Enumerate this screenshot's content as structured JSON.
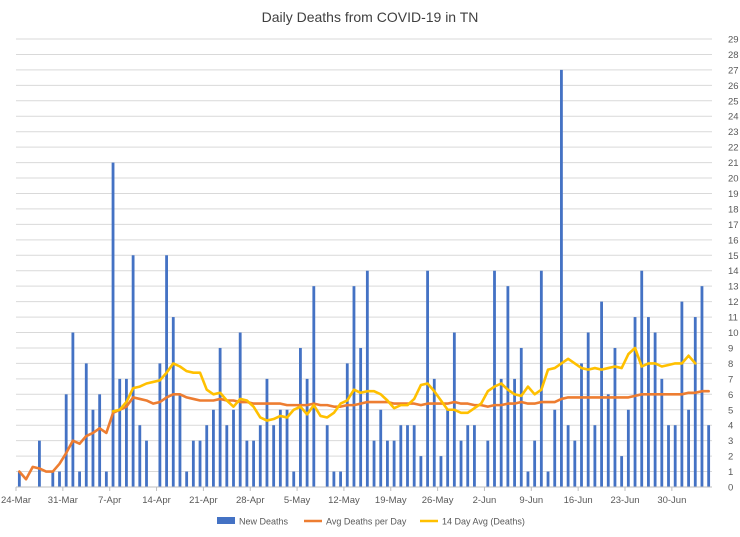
{
  "chart_data": {
    "type": "bar",
    "title": "Daily Deaths from COVID-19 in TN",
    "xlabel": "",
    "ylabel": "",
    "ylim": [
      0,
      29
    ],
    "yticks": [
      0,
      1,
      2,
      3,
      4,
      5,
      6,
      7,
      8,
      9,
      10,
      11,
      12,
      13,
      14,
      15,
      16,
      17,
      18,
      19,
      20,
      21,
      22,
      23,
      24,
      25,
      26,
      27,
      28,
      29
    ],
    "x_tick_labels": [
      "24-Mar",
      "31-Mar",
      "7-Apr",
      "14-Apr",
      "21-Apr",
      "28-Apr",
      "5-May",
      "12-May",
      "19-May",
      "26-May",
      "2-Jun",
      "9-Jun",
      "16-Jun",
      "23-Jun",
      "30-Jun"
    ],
    "grid": true,
    "legend_position": "bottom",
    "start_date": "2020-03-24",
    "series": [
      {
        "name": "New Deaths",
        "type": "bar",
        "color": "#4472C4",
        "values": [
          1,
          0,
          0,
          3,
          0,
          1,
          1,
          6,
          10,
          1,
          8,
          5,
          6,
          1,
          21,
          7,
          7,
          15,
          4,
          3,
          0,
          8,
          15,
          11,
          6,
          1,
          3,
          3,
          4,
          5,
          9,
          4,
          5,
          10,
          3,
          3,
          4,
          7,
          4,
          5,
          5,
          1,
          9,
          7,
          13,
          0,
          4,
          1,
          1,
          8,
          13,
          9,
          14,
          3,
          5,
          3,
          3,
          4,
          4,
          4,
          2,
          14,
          7,
          2,
          5,
          10,
          3,
          4,
          4,
          0,
          3,
          14,
          7,
          13,
          7,
          9,
          1,
          3,
          14,
          1,
          5,
          27,
          4,
          3,
          8,
          10,
          4,
          12,
          6,
          9,
          2,
          5,
          11,
          14,
          11,
          10,
          7,
          4,
          4,
          12,
          5,
          11,
          13,
          4
        ]
      },
      {
        "name": "Avg Deaths per Day",
        "type": "line",
        "color": "#ED7D31",
        "values": [
          1.0,
          0.5,
          1.3,
          1.2,
          1.0,
          1.0,
          1.5,
          2.2,
          3.0,
          2.8,
          3.3,
          3.5,
          3.8,
          3.5,
          4.8,
          5.0,
          5.2,
          5.8,
          5.7,
          5.6,
          5.4,
          5.5,
          5.8,
          6.0,
          6.0,
          5.8,
          5.7,
          5.6,
          5.6,
          5.6,
          5.7,
          5.6,
          5.6,
          5.5,
          5.5,
          5.4,
          5.4,
          5.4,
          5.4,
          5.4,
          5.3,
          5.3,
          5.3,
          5.3,
          5.4,
          5.3,
          5.3,
          5.2,
          5.2,
          5.3,
          5.3,
          5.4,
          5.5,
          5.5,
          5.5,
          5.5,
          5.4,
          5.4,
          5.4,
          5.4,
          5.3,
          5.4,
          5.4,
          5.4,
          5.4,
          5.5,
          5.4,
          5.4,
          5.3,
          5.3,
          5.2,
          5.3,
          5.3,
          5.4,
          5.4,
          5.5,
          5.4,
          5.4,
          5.5,
          5.5,
          5.5,
          5.7,
          5.8,
          5.8,
          5.8,
          5.8,
          5.8,
          5.8,
          5.8,
          5.8,
          5.8,
          5.8,
          5.9,
          6.0,
          6.0,
          6.0,
          6.0,
          6.0,
          6.0,
          6.0,
          6.1,
          6.1,
          6.2,
          6.2
        ]
      },
      {
        "name": "14 Day Avg (Deaths)",
        "type": "line",
        "color": "#FFC000",
        "start_index": 14,
        "values": [
          4.9,
          5.0,
          5.5,
          6.4,
          6.5,
          6.7,
          6.8,
          6.9,
          7.4,
          8.0,
          7.8,
          7.5,
          7.4,
          7.4,
          6.3,
          6.0,
          6.1,
          5.6,
          5.2,
          5.7,
          5.6,
          5.2,
          4.5,
          4.3,
          4.4,
          4.6,
          4.5,
          5.0,
          5.2,
          4.7,
          5.3,
          4.6,
          4.5,
          4.8,
          5.4,
          5.6,
          6.3,
          6.1,
          6.2,
          6.2,
          6.0,
          5.6,
          5.1,
          5.3,
          5.3,
          5.7,
          6.6,
          6.7,
          6.2,
          5.6,
          5.0,
          5.0,
          4.8,
          4.8,
          5.1,
          5.4,
          6.2,
          6.5,
          6.7,
          6.3,
          6.0,
          5.9,
          6.5,
          6.0,
          6.3,
          7.6,
          7.7,
          8.0,
          8.3,
          8.0,
          7.7,
          7.6,
          7.7,
          7.6,
          7.7,
          7.8,
          7.7,
          8.6,
          9.0,
          7.8,
          8.0,
          8.0,
          7.8,
          7.9,
          8.0,
          8.0,
          8.5,
          8.0
        ]
      }
    ]
  }
}
